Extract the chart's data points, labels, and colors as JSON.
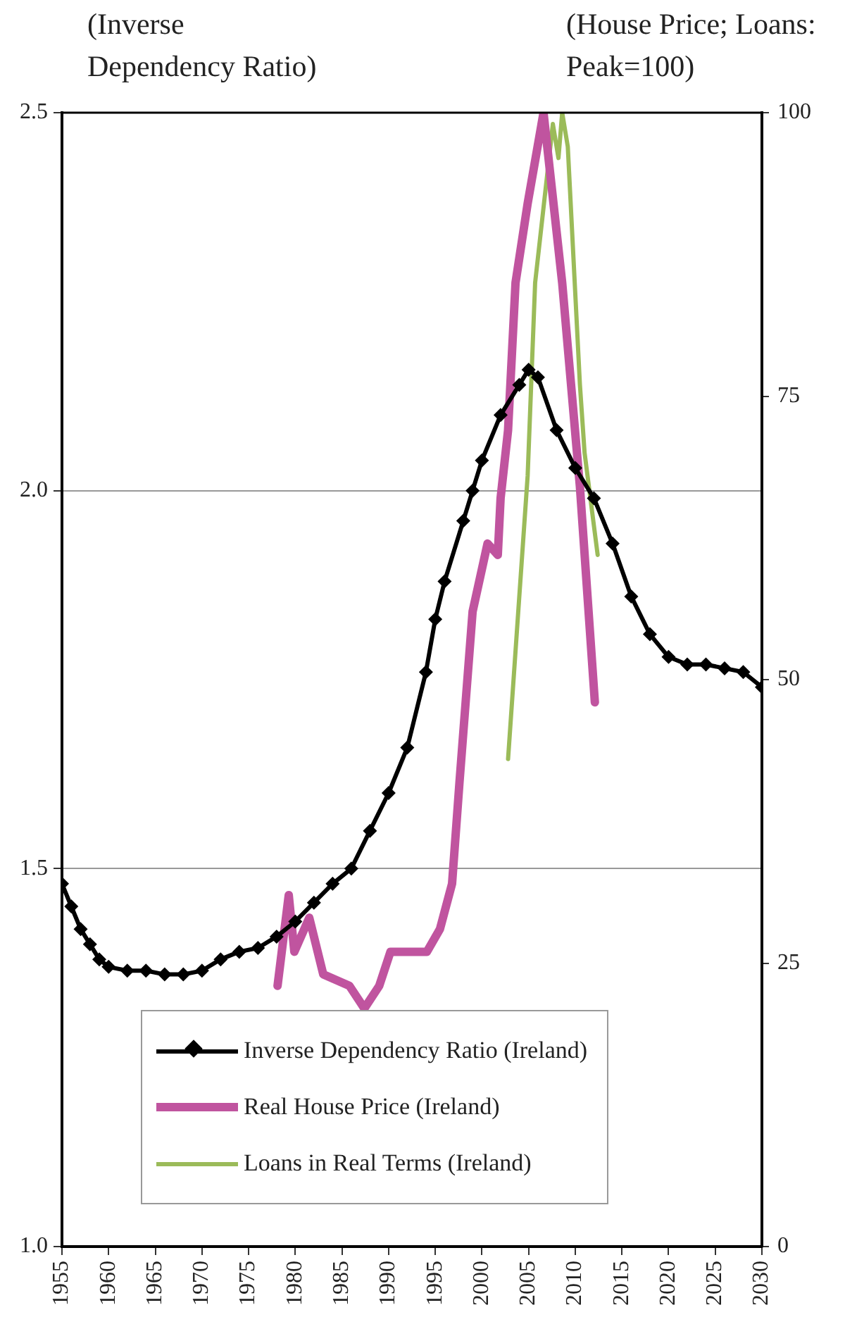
{
  "chart_data": {
    "type": "line",
    "ylabel": "(Inverse\nDependency Ratio)",
    "y2label": "(House Price; Loans:\nPeak=100)",
    "xlim": [
      1955,
      2030
    ],
    "xticks": [
      1955,
      1960,
      1965,
      1970,
      1975,
      1980,
      1985,
      1990,
      1995,
      2000,
      2005,
      2010,
      2015,
      2020,
      2025,
      2030
    ],
    "ylim": [
      1.0,
      2.5
    ],
    "yticks": [
      {
        "value": 1.0,
        "label": "1.0"
      },
      1.5,
      {
        "value": 2.0,
        "label": "2.0"
      },
      2.5
    ],
    "y2lim": [
      0,
      100
    ],
    "y2ticks": [
      0,
      25,
      50,
      75,
      100
    ],
    "grid": "y",
    "legend": "bottom",
    "line_style": "solid",
    "series": [
      {
        "name": "Inverse Dependency Ratio (Ireland)",
        "color": "#000000",
        "marker": "diamond",
        "x": [
          1955,
          1956,
          1957,
          1958,
          1959,
          1960,
          1962,
          1964,
          1966,
          1968,
          1970,
          1972,
          1974,
          1976,
          1978,
          1980,
          1982,
          1984,
          1986,
          1988,
          1990,
          1992,
          1994,
          1995,
          1996,
          1998,
          1999,
          2000,
          2002,
          2004,
          2005,
          2006,
          2008,
          2010,
          2012,
          2014,
          2016,
          2018,
          2020,
          2022,
          2024,
          2026,
          2028,
          2030
        ],
        "values": [
          1.48,
          1.45,
          1.42,
          1.4,
          1.38,
          1.37,
          1.365,
          1.365,
          1.36,
          1.36,
          1.365,
          1.38,
          1.39,
          1.395,
          1.41,
          1.43,
          1.455,
          1.48,
          1.5,
          1.55,
          1.6,
          1.66,
          1.76,
          1.83,
          1.88,
          1.96,
          2.0,
          2.04,
          2.1,
          2.14,
          2.16,
          2.15,
          2.08,
          2.03,
          1.99,
          1.93,
          1.86,
          1.81,
          1.78,
          1.77,
          1.77,
          1.765,
          1.76,
          1.74
        ]
      },
      {
        "name": "Real House Price (Ireland)",
        "color": "#c0549f",
        "marker": "none",
        "axis": "y2",
        "x": [
          1978.1,
          1979.3,
          1979.9,
          1981.5,
          1983,
          1985.8,
          1987.4,
          1989,
          1990.2,
          1992,
          1994.1,
          1995.5,
          1996.8,
          1997.6,
          1999,
          2000.6,
          2001.7,
          2002,
          2002.8,
          2003.6,
          2004.9,
          2006.6,
          2008.6,
          2010.5,
          2012.1
        ],
        "values": [
          23,
          31,
          26,
          29,
          24,
          23,
          21,
          23,
          26,
          26,
          26,
          28,
          32,
          41,
          56,
          62,
          61,
          66,
          72,
          85,
          92,
          100,
          85,
          67,
          48
        ]
      },
      {
        "name": "Loans in Real Terms (Ireland)",
        "color": "#9bbb59",
        "marker": "none",
        "axis": "y2",
        "x": [
          2002.8,
          2004.9,
          2005.7,
          2007.6,
          2008.2,
          2008.6,
          2009.2,
          2010.5,
          2011,
          2012.4
        ],
        "values": [
          43,
          68,
          85,
          99,
          96,
          100,
          97,
          76,
          70,
          61
        ]
      }
    ]
  }
}
